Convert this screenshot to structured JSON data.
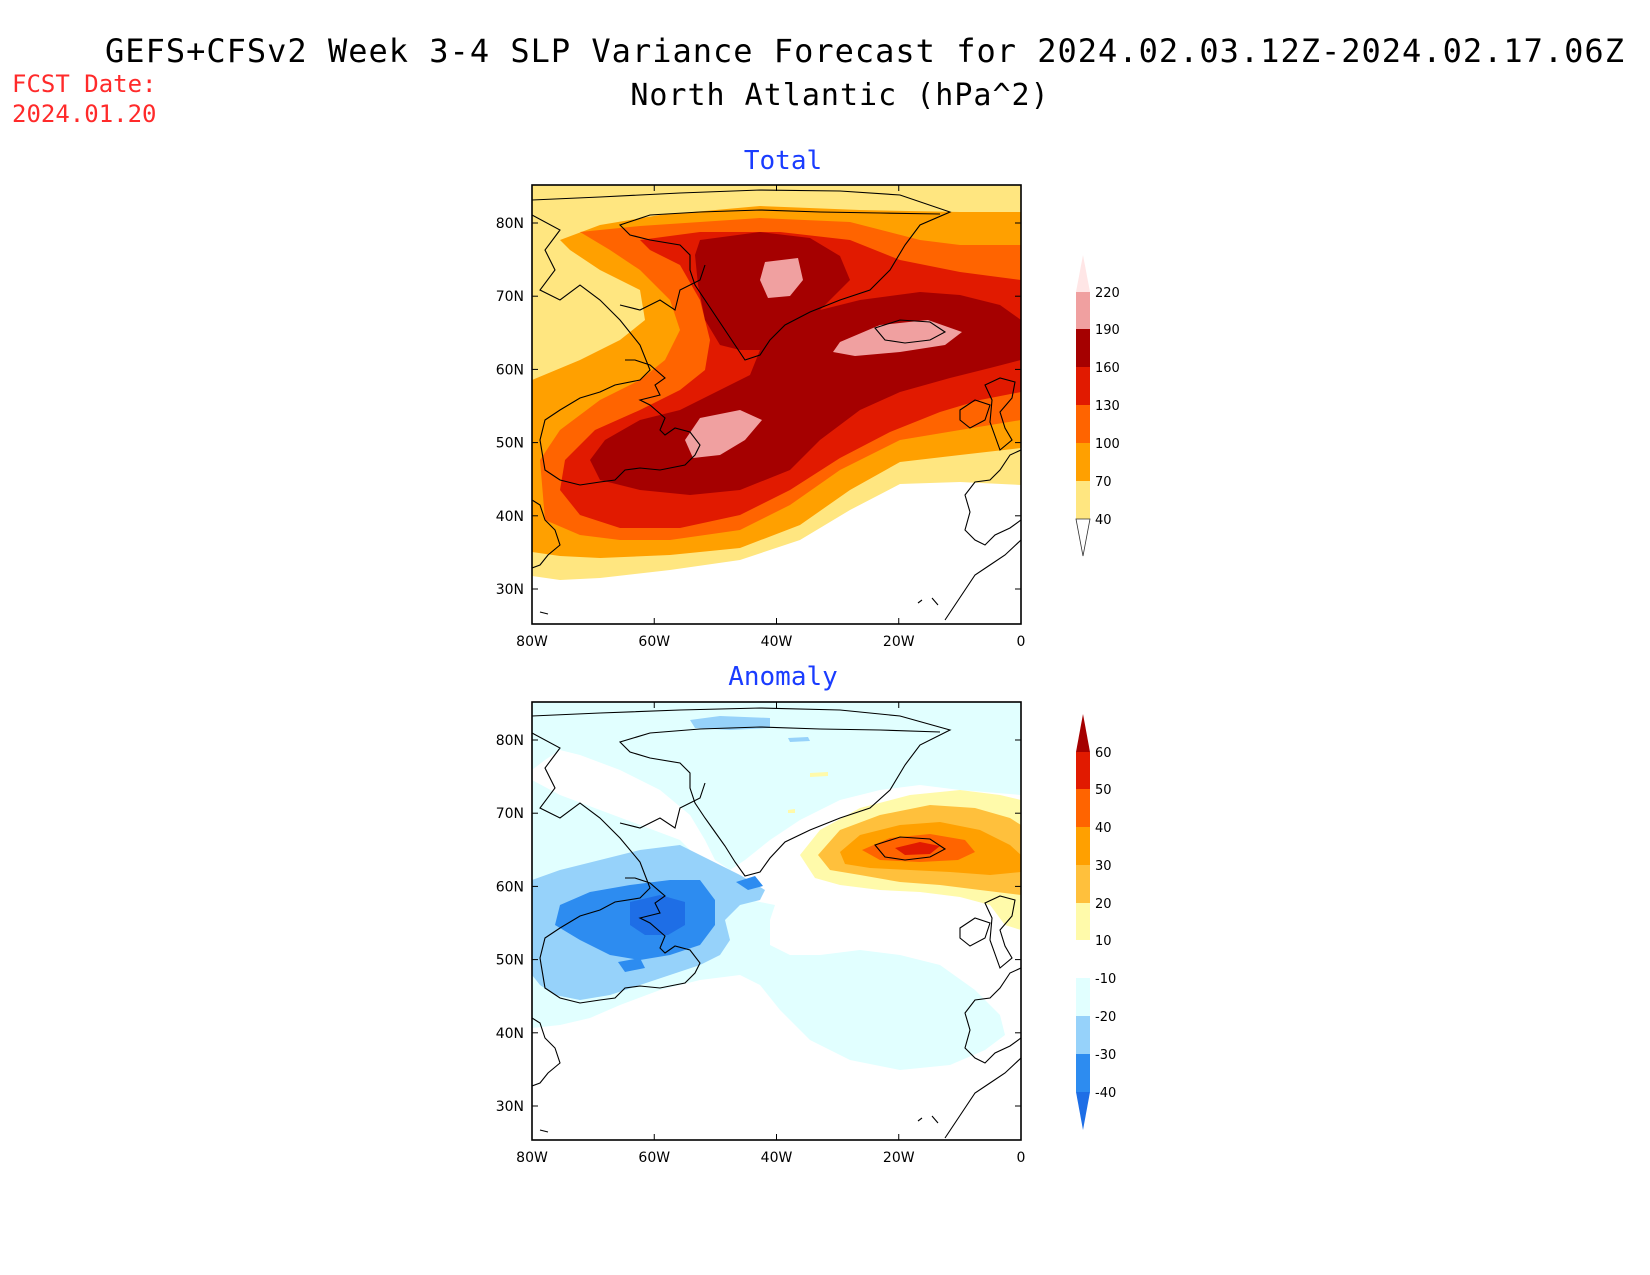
{
  "header": {
    "title_line1": "GEFS+CFSv2 Week 3-4 SLP Variance Forecast for 2024.02.03.12Z-2024.02.17.06Z",
    "title_line2": "North Atlantic (hPa^2)",
    "fcst_label": "FCST Date:",
    "fcst_date": "2024.01.20"
  },
  "panels": {
    "total": {
      "title": "Total",
      "colorbar_labels": [
        "40",
        "70",
        "100",
        "130",
        "160",
        "190",
        "220"
      ],
      "colors": [
        "#ffe680",
        "#ffa000",
        "#ff6400",
        "#e11a00",
        "#a50000",
        "#f0a0a0",
        "#ffe6e6"
      ]
    },
    "anomaly": {
      "title": "Anomaly",
      "colorbar_labels": [
        "-40",
        "-30",
        "-20",
        "-10",
        "10",
        "20",
        "30",
        "40",
        "50",
        "60"
      ],
      "colors": [
        "#1e6ee6",
        "#2d8cf0",
        "#96d2fa",
        "#e1ffff",
        "#ffffff",
        "#fffaaa",
        "#ffc03c",
        "#ffa000",
        "#ff6400",
        "#e11a00",
        "#a50000"
      ]
    },
    "lat_labels": [
      "80N",
      "70N",
      "60N",
      "50N",
      "40N",
      "30N"
    ],
    "lon_labels": [
      "80W",
      "60W",
      "40W",
      "20W",
      "0"
    ]
  }
}
